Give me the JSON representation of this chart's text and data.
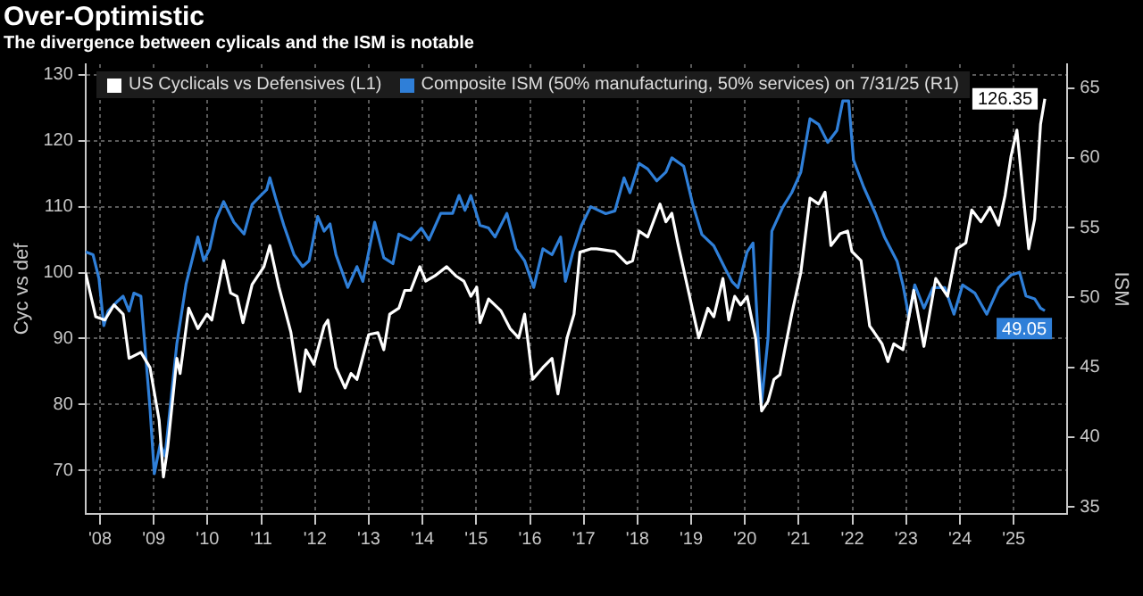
{
  "chart_data": {
    "type": "line",
    "title": "Over-Optimistic",
    "subtitle": "The divergence between cylicals and the ISM is notable",
    "ylabel": "Cyc vs def",
    "y2label": "ISM",
    "legend": "top left",
    "grid": true,
    "marker": "none",
    "line_style": "solid",
    "xlim": [
      2007.73,
      2026.0
    ],
    "xticks": [
      {
        "value": 2008,
        "label": "'08"
      },
      {
        "value": 2009,
        "label": "'09"
      },
      {
        "value": 2010,
        "label": "'10"
      },
      {
        "value": 2011,
        "label": "'11"
      },
      {
        "value": 2012,
        "label": "'12"
      },
      {
        "value": 2013,
        "label": "'13"
      },
      {
        "value": 2014,
        "label": "'14"
      },
      {
        "value": 2015,
        "label": "'15"
      },
      {
        "value": 2016,
        "label": "'16"
      },
      {
        "value": 2017,
        "label": "'17"
      },
      {
        "value": 2018,
        "label": "'18"
      },
      {
        "value": 2019,
        "label": "'19"
      },
      {
        "value": 2020,
        "label": "'20"
      },
      {
        "value": 2021,
        "label": "'21"
      },
      {
        "value": 2022,
        "label": "'22"
      },
      {
        "value": 2023,
        "label": "'23"
      },
      {
        "value": 2024,
        "label": "'24"
      },
      {
        "value": 2025,
        "label": "'25"
      }
    ],
    "ylim": [
      63.4,
      131.6
    ],
    "yticks": [
      70,
      80,
      90,
      100,
      110,
      120,
      130
    ],
    "y2lim": [
      34.5,
      66.7
    ],
    "y2ticks": [
      35,
      40,
      45,
      50,
      55,
      60,
      65
    ],
    "series": [
      {
        "name": "US Cyclicals vs Defensives (L1)",
        "color": "#ffffff",
        "axis": "y",
        "x": [
          2007.73,
          2007.92,
          2008.09,
          2008.26,
          2008.43,
          2008.54,
          2008.76,
          2008.93,
          2009.1,
          2009.18,
          2009.26,
          2009.43,
          2009.49,
          2009.65,
          2009.82,
          2009.99,
          2010.08,
          2010.3,
          2010.43,
          2010.55,
          2010.66,
          2010.83,
          2011.05,
          2011.16,
          2011.33,
          2011.55,
          2011.72,
          2011.83,
          2011.98,
          2012.17,
          2012.24,
          2012.39,
          2012.56,
          2012.67,
          2012.78,
          2013.0,
          2013.17,
          2013.28,
          2013.39,
          2013.56,
          2013.67,
          2013.78,
          2013.95,
          2014.06,
          2014.23,
          2014.45,
          2014.62,
          2014.77,
          2014.9,
          2015.01,
          2015.07,
          2015.23,
          2015.46,
          2015.63,
          2015.79,
          2015.9,
          2016.05,
          2016.24,
          2016.41,
          2016.52,
          2016.69,
          2016.82,
          2016.93,
          2017.13,
          2017.24,
          2017.58,
          2017.8,
          2017.91,
          2018.03,
          2018.19,
          2018.42,
          2018.53,
          2018.64,
          2018.75,
          2018.97,
          2019.14,
          2019.31,
          2019.42,
          2019.59,
          2019.7,
          2019.81,
          2019.92,
          2020.04,
          2020.2,
          2020.31,
          2020.43,
          2020.54,
          2020.65,
          2020.87,
          2021.04,
          2021.21,
          2021.37,
          2021.49,
          2021.6,
          2021.77,
          2021.91,
          2021.99,
          2022.16,
          2022.32,
          2022.4,
          2022.55,
          2022.66,
          2022.77,
          2022.94,
          2023.14,
          2023.33,
          2023.55,
          2023.77,
          2023.94,
          2024.11,
          2024.22,
          2024.39,
          2024.56,
          2024.72,
          2024.84,
          2024.95,
          2025.06,
          2025.19,
          2025.28,
          2025.39,
          2025.5,
          2025.58
        ],
        "values": [
          100.0,
          93.3,
          92.8,
          95.1,
          93.7,
          87.0,
          87.9,
          85.6,
          77.6,
          69.0,
          73.5,
          87.0,
          84.7,
          94.6,
          91.5,
          93.7,
          92.8,
          101.8,
          96.9,
          96.4,
          92.4,
          98.2,
          100.9,
          104.1,
          97.8,
          91.0,
          82.0,
          88.3,
          86.1,
          91.9,
          92.8,
          85.6,
          82.5,
          84.7,
          83.8,
          90.6,
          90.9,
          88.3,
          93.7,
          94.6,
          97.3,
          97.3,
          100.9,
          98.7,
          99.5,
          100.9,
          99.5,
          98.7,
          96.4,
          97.8,
          92.4,
          96.0,
          94.2,
          91.5,
          90.1,
          93.7,
          83.8,
          85.6,
          87.0,
          81.6,
          90.1,
          93.7,
          103.1,
          103.6,
          103.6,
          103.2,
          101.4,
          101.8,
          106.3,
          105.4,
          110.4,
          107.7,
          109.0,
          104.5,
          96.4,
          90.1,
          94.6,
          93.3,
          99.1,
          92.8,
          96.4,
          95.1,
          96.4,
          90.0,
          79.0,
          80.5,
          83.8,
          84.5,
          93.7,
          100.0,
          111.3,
          110.4,
          112.2,
          104.1,
          105.9,
          106.3,
          103.2,
          101.8,
          91.9,
          91.0,
          89.2,
          86.5,
          89.2,
          88.3,
          97.3,
          88.8,
          99.1,
          96.4,
          103.6,
          104.5,
          109.5,
          107.7,
          109.9,
          107.2,
          111.7,
          117.6,
          121.6,
          110.8,
          103.6,
          108.1,
          122.5,
          126.35
        ],
        "value_labels": [
          null,
          null,
          null,
          null,
          null,
          null,
          null,
          null,
          null,
          null,
          null,
          null,
          null,
          null,
          null,
          null,
          null,
          null,
          null,
          null,
          null,
          null,
          null,
          null,
          null,
          null,
          null,
          null,
          null,
          null,
          null,
          null,
          null,
          null,
          null,
          null,
          null,
          null,
          null,
          null,
          null,
          null,
          null,
          null,
          null,
          null,
          null,
          null,
          null,
          null,
          null,
          null,
          null,
          null,
          null,
          null,
          null,
          null,
          null,
          null,
          null,
          null,
          null,
          null,
          null,
          null,
          null,
          null,
          null,
          null,
          null,
          null,
          null,
          null,
          null,
          null,
          null,
          null,
          null,
          null,
          null,
          null,
          null,
          null,
          null,
          null,
          null,
          null,
          null,
          null,
          null,
          null,
          null,
          null,
          null,
          null,
          null,
          null,
          null,
          null,
          null,
          null,
          null,
          null,
          null,
          null,
          null,
          null,
          null,
          null,
          null,
          null,
          null,
          null,
          null,
          null,
          null,
          null,
          null,
          null,
          null,
          "126.35"
        ]
      },
      {
        "name": "Composite ISM (50% manufacturing, 50% services) on 7/31/25 (R1)",
        "color": "#2f7fd8",
        "axis": "y2",
        "x": [
          2007.73,
          2007.87,
          2007.98,
          2008.07,
          2008.15,
          2008.31,
          2008.43,
          2008.54,
          2008.63,
          2008.76,
          2008.93,
          2009.01,
          2009.12,
          2009.21,
          2009.43,
          2009.6,
          2009.82,
          2009.93,
          2010.04,
          2010.16,
          2010.3,
          2010.49,
          2010.68,
          2010.83,
          2010.99,
          2011.1,
          2011.16,
          2011.27,
          2011.42,
          2011.61,
          2011.77,
          2011.89,
          2012.05,
          2012.17,
          2012.28,
          2012.39,
          2012.61,
          2012.78,
          2012.89,
          2013.11,
          2013.28,
          2013.45,
          2013.56,
          2013.78,
          2013.98,
          2014.12,
          2014.34,
          2014.56,
          2014.68,
          2014.79,
          2014.9,
          2015.07,
          2015.23,
          2015.35,
          2015.57,
          2015.74,
          2015.9,
          2016.07,
          2016.24,
          2016.41,
          2016.57,
          2016.66,
          2016.8,
          2016.96,
          2017.13,
          2017.41,
          2017.58,
          2017.75,
          2017.86,
          2018.03,
          2018.19,
          2018.36,
          2018.53,
          2018.64,
          2018.86,
          2019.03,
          2019.2,
          2019.42,
          2019.64,
          2019.76,
          2019.87,
          2020.04,
          2020.15,
          2020.31,
          2020.43,
          2020.5,
          2020.7,
          2020.87,
          2021.04,
          2021.21,
          2021.37,
          2021.54,
          2021.71,
          2021.82,
          2021.93,
          2022.02,
          2022.21,
          2022.43,
          2022.6,
          2022.83,
          2022.94,
          2023.05,
          2023.16,
          2023.33,
          2023.5,
          2023.72,
          2023.89,
          2024.05,
          2024.28,
          2024.5,
          2024.72,
          2024.95,
          2025.11,
          2025.23,
          2025.39,
          2025.5,
          2025.58
        ],
        "values": [
          53.27,
          53.06,
          51.36,
          47.98,
          49.03,
          49.67,
          50.09,
          49.03,
          50.31,
          50.09,
          42.05,
          37.38,
          39.5,
          38.65,
          46.71,
          50.94,
          54.33,
          52.63,
          53.48,
          55.6,
          56.87,
          55.39,
          54.54,
          56.66,
          57.3,
          57.71,
          58.57,
          57.08,
          55.17,
          53.06,
          52.21,
          52.63,
          55.8,
          54.75,
          55.26,
          53.06,
          50.72,
          52.21,
          51.15,
          55.39,
          52.84,
          52.42,
          54.54,
          54.12,
          54.97,
          54.12,
          56.02,
          56.02,
          57.3,
          56.24,
          57.3,
          55.17,
          54.97,
          54.33,
          56.02,
          53.48,
          52.63,
          50.72,
          53.48,
          53.06,
          54.33,
          51.15,
          53.27,
          55.17,
          56.5,
          56.0,
          56.2,
          58.56,
          57.5,
          59.6,
          59.2,
          58.35,
          58.98,
          60.0,
          59.4,
          56.65,
          54.5,
          53.7,
          52.0,
          51.14,
          50.7,
          53.26,
          53.9,
          42.46,
          47.1,
          54.75,
          56.44,
          57.5,
          58.98,
          62.8,
          62.4,
          61.1,
          61.95,
          64.07,
          64.07,
          59.83,
          57.9,
          56.0,
          54.3,
          52.6,
          50.9,
          48.6,
          50.9,
          49.24,
          50.7,
          50.7,
          48.8,
          50.9,
          50.3,
          48.8,
          50.7,
          51.6,
          51.8,
          50.1,
          49.9,
          49.24,
          49.05
        ],
        "value_labels": [
          null,
          null,
          null,
          null,
          null,
          null,
          null,
          null,
          null,
          null,
          null,
          null,
          null,
          null,
          null,
          null,
          null,
          null,
          null,
          null,
          null,
          null,
          null,
          null,
          null,
          null,
          null,
          null,
          null,
          null,
          null,
          null,
          null,
          null,
          null,
          null,
          null,
          null,
          null,
          null,
          null,
          null,
          null,
          null,
          null,
          null,
          null,
          null,
          null,
          null,
          null,
          null,
          null,
          null,
          null,
          null,
          null,
          null,
          null,
          null,
          null,
          null,
          null,
          null,
          null,
          null,
          null,
          null,
          null,
          null,
          null,
          null,
          null,
          null,
          null,
          null,
          null,
          null,
          null,
          null,
          null,
          null,
          null,
          null,
          null,
          null,
          null,
          null,
          null,
          null,
          null,
          null,
          null,
          null,
          null,
          null,
          null,
          null,
          null,
          null,
          null,
          null,
          null,
          null,
          null,
          null,
          null,
          null,
          null,
          null,
          null,
          null,
          null,
          null,
          null,
          null,
          "49.05"
        ]
      }
    ]
  }
}
